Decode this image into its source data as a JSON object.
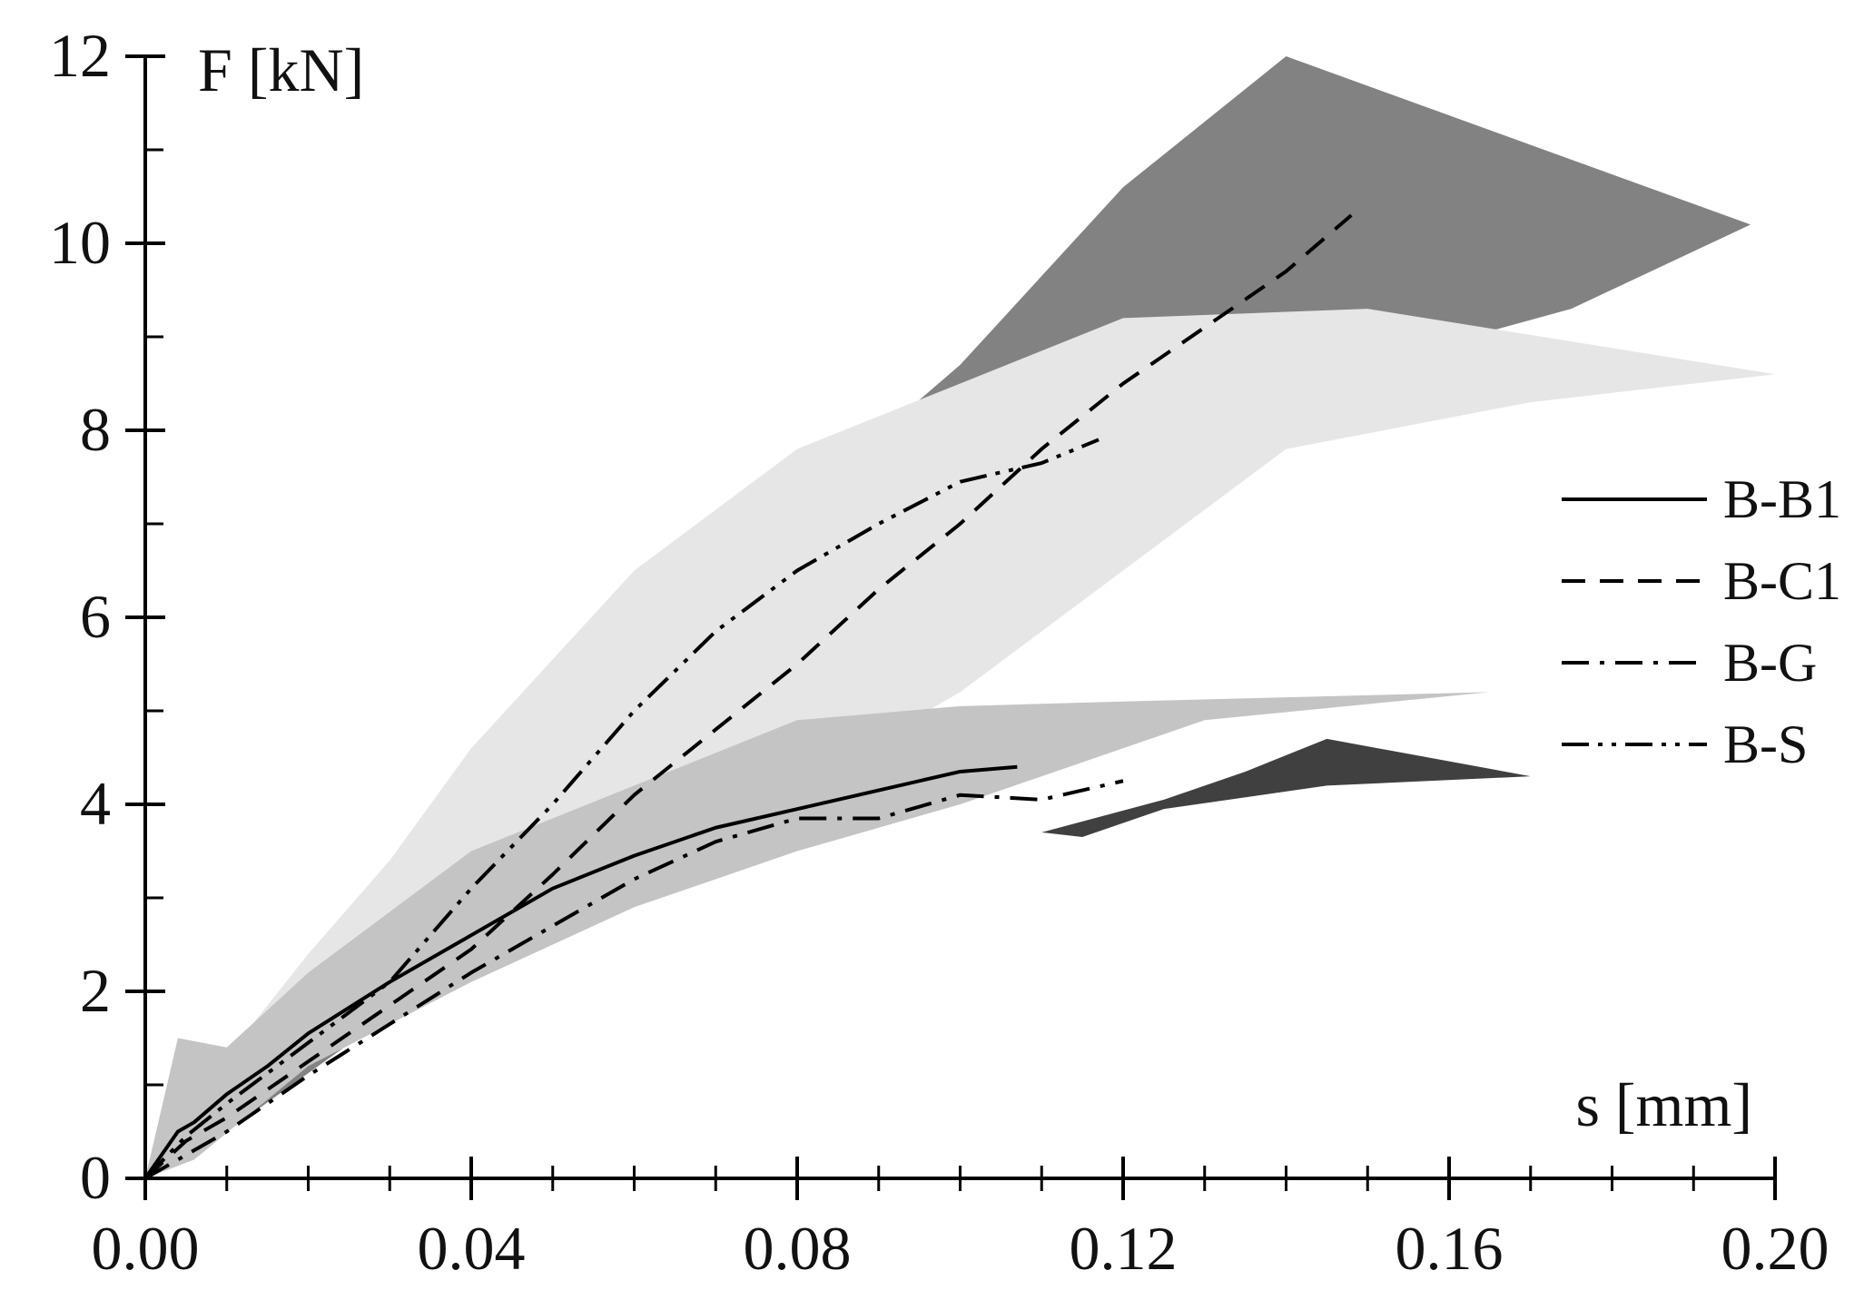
{
  "chart_data": {
    "type": "line",
    "xlabel": "s [mm]",
    "ylabel": "F [kN]",
    "xlim": [
      0.0,
      0.2
    ],
    "ylim": [
      0,
      12
    ],
    "x_ticks": [
      "0.00",
      "0.04",
      "0.08",
      "0.12",
      "0.16",
      "0.20"
    ],
    "x_tick_values": [
      0.0,
      0.04,
      0.08,
      0.12,
      0.16,
      0.2
    ],
    "y_ticks": [
      "0",
      "2",
      "4",
      "6",
      "8",
      "10",
      "12"
    ],
    "y_tick_values": [
      0,
      2,
      4,
      6,
      8,
      10,
      12
    ],
    "legend_position": "right",
    "series": [
      {
        "name": "B-B1",
        "style": "solid",
        "x": [
          0.0,
          0.004,
          0.006,
          0.01,
          0.015,
          0.02,
          0.03,
          0.04,
          0.05,
          0.06,
          0.07,
          0.08,
          0.09,
          0.1,
          0.107
        ],
        "y": [
          0.0,
          0.5,
          0.6,
          0.9,
          1.2,
          1.55,
          2.1,
          2.6,
          3.1,
          3.45,
          3.75,
          3.95,
          4.15,
          4.35,
          4.4
        ]
      },
      {
        "name": "B-C1",
        "style": "dashed",
        "x": [
          0.0,
          0.005,
          0.01,
          0.015,
          0.02,
          0.03,
          0.04,
          0.05,
          0.06,
          0.07,
          0.08,
          0.09,
          0.1,
          0.11,
          0.12,
          0.13,
          0.14,
          0.148
        ],
        "y": [
          0.0,
          0.4,
          0.65,
          0.95,
          1.25,
          1.85,
          2.45,
          3.25,
          4.1,
          4.8,
          5.5,
          6.3,
          7.0,
          7.8,
          8.5,
          9.1,
          9.7,
          10.3
        ]
      },
      {
        "name": "B-G",
        "style": "dash-dot",
        "x": [
          0.0,
          0.005,
          0.01,
          0.015,
          0.02,
          0.03,
          0.04,
          0.05,
          0.06,
          0.07,
          0.08,
          0.085,
          0.09,
          0.1,
          0.11,
          0.12
        ],
        "y": [
          0.0,
          0.25,
          0.5,
          0.8,
          1.1,
          1.65,
          2.2,
          2.7,
          3.2,
          3.6,
          3.85,
          3.85,
          3.85,
          4.1,
          4.05,
          4.25
        ]
      },
      {
        "name": "B-S",
        "style": "dash-dot-dot",
        "x": [
          0.0,
          0.005,
          0.01,
          0.02,
          0.03,
          0.04,
          0.05,
          0.06,
          0.07,
          0.08,
          0.09,
          0.1,
          0.11,
          0.117
        ],
        "y": [
          0.0,
          0.45,
          0.8,
          1.45,
          2.1,
          3.1,
          4.0,
          5.0,
          5.85,
          6.5,
          7.0,
          7.45,
          7.65,
          7.9
        ]
      }
    ],
    "bands": [
      {
        "series": "B-C1",
        "color": "#828282",
        "upper_x": [
          0.0,
          0.02,
          0.04,
          0.06,
          0.08,
          0.1,
          0.12,
          0.14,
          0.197
        ],
        "upper_y": [
          0.0,
          1.7,
          3.4,
          5.4,
          7.2,
          8.7,
          10.6,
          12.0,
          10.2
        ],
        "lower_x": [
          0.197,
          0.175,
          0.15,
          0.13,
          0.11,
          0.09,
          0.07,
          0.05,
          0.03,
          0.01,
          0.0
        ],
        "lower_y": [
          10.2,
          9.3,
          8.7,
          7.9,
          6.7,
          5.6,
          4.5,
          3.1,
          1.75,
          0.5,
          0.0
        ]
      },
      {
        "series": "B-S",
        "color": "#e6e6e6",
        "upper_x": [
          0.0,
          0.01,
          0.02,
          0.03,
          0.04,
          0.06,
          0.08,
          0.1,
          0.12,
          0.15,
          0.2
        ],
        "upper_y": [
          0.0,
          1.3,
          2.4,
          3.4,
          4.6,
          6.5,
          7.8,
          8.5,
          9.2,
          9.3,
          8.6
        ],
        "lower_x": [
          0.2,
          0.17,
          0.14,
          0.12,
          0.1,
          0.08,
          0.06,
          0.04,
          0.02,
          0.01,
          0.0
        ],
        "lower_y": [
          8.6,
          8.3,
          7.8,
          6.5,
          5.2,
          4.2,
          3.6,
          2.7,
          1.5,
          0.7,
          0.0
        ]
      },
      {
        "series": "B-B1",
        "color": "#c4c4c4",
        "upper_x": [
          0.0,
          0.004,
          0.01,
          0.02,
          0.04,
          0.06,
          0.08,
          0.1,
          0.12,
          0.165
        ],
        "upper_y": [
          0.0,
          1.5,
          1.4,
          2.2,
          3.5,
          4.2,
          4.9,
          5.05,
          5.1,
          5.2
        ],
        "lower_x": [
          0.165,
          0.13,
          0.1,
          0.08,
          0.06,
          0.04,
          0.02,
          0.006,
          0.0
        ],
        "lower_y": [
          5.2,
          4.9,
          4.0,
          3.5,
          2.9,
          2.1,
          1.2,
          0.2,
          0.0
        ]
      },
      {
        "series": "B-G",
        "color": "#404040",
        "upper_x": [
          0.11,
          0.125,
          0.135,
          0.145,
          0.17
        ],
        "upper_y": [
          3.7,
          4.05,
          4.35,
          4.7,
          4.3
        ],
        "lower_x": [
          0.17,
          0.145,
          0.125,
          0.115,
          0.11
        ],
        "lower_y": [
          4.3,
          4.2,
          3.95,
          3.65,
          3.7
        ]
      }
    ]
  }
}
